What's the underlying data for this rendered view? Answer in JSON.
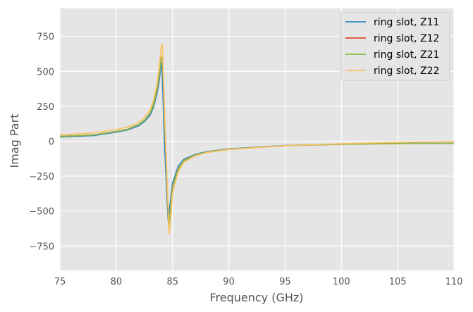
{
  "chart_data": {
    "type": "line",
    "xlabel": "Frequency (GHz)",
    "ylabel": "Imag Part",
    "xlim": [
      75,
      110
    ],
    "ylim": [
      -925,
      950
    ],
    "xticks": [
      75,
      80,
      85,
      90,
      95,
      100,
      105,
      110
    ],
    "yticks": [
      -750,
      -500,
      -250,
      0,
      250,
      500,
      750
    ],
    "grid": true,
    "legend_position": "top-right",
    "colors": {
      "background": "#e5e5e5",
      "grid": "#ffffff"
    },
    "series": [
      {
        "name": "ring slot, Z11",
        "color": "#348abd",
        "x": [
          75,
          78,
          80,
          81,
          82,
          82.5,
          83,
          83.3,
          83.6,
          83.8,
          84.0,
          84.05,
          84.3,
          84.6,
          84.7,
          85.0,
          85.5,
          86,
          87,
          88,
          90,
          95,
          100,
          105,
          110
        ],
        "y": [
          30,
          40,
          65,
          80,
          110,
          140,
          185,
          240,
          330,
          420,
          555,
          560,
          -50,
          -560,
          -500,
          -300,
          -180,
          -130,
          -95,
          -75,
          -55,
          -30,
          -20,
          -15,
          -15
        ]
      },
      {
        "name": "ring slot, Z12",
        "color": "#e24a33",
        "x": [
          75,
          78,
          80,
          81,
          82,
          82.5,
          83,
          83.3,
          83.6,
          83.8,
          84.0,
          84.1,
          84.4,
          84.65,
          84.75,
          85.0,
          85.5,
          86,
          87,
          88,
          90,
          95,
          100,
          105,
          110
        ],
        "y": [
          35,
          45,
          70,
          85,
          120,
          150,
          200,
          260,
          360,
          460,
          600,
          605,
          -60,
          -600,
          -540,
          -330,
          -200,
          -140,
          -100,
          -78,
          -57,
          -32,
          -22,
          -17,
          -15
        ]
      },
      {
        "name": "ring slot, Z21",
        "color": "#8eba42",
        "x": [
          75,
          78,
          80,
          81,
          82,
          82.5,
          83,
          83.3,
          83.6,
          83.8,
          84.0,
          84.1,
          84.4,
          84.65,
          84.75,
          85.0,
          85.5,
          86,
          87,
          88,
          90,
          95,
          100,
          105,
          110
        ],
        "y": [
          35,
          45,
          70,
          85,
          120,
          150,
          200,
          260,
          360,
          460,
          600,
          605,
          -60,
          -600,
          -540,
          -330,
          -200,
          -140,
          -100,
          -78,
          -57,
          -32,
          -22,
          -17,
          -15
        ]
      },
      {
        "name": "ring slot, Z22",
        "color": "#fbc15e",
        "x": [
          75,
          78,
          80,
          81,
          82,
          82.5,
          83,
          83.3,
          83.6,
          83.8,
          84.0,
          84.1,
          84.4,
          84.7,
          84.8,
          85.0,
          85.5,
          86,
          87,
          88,
          90,
          95,
          100,
          105,
          110
        ],
        "y": [
          45,
          60,
          85,
          100,
          135,
          170,
          225,
          290,
          400,
          510,
          680,
          690,
          -60,
          -660,
          -590,
          -370,
          -220,
          -150,
          -105,
          -82,
          -60,
          -32,
          -18,
          -8,
          -2
        ]
      }
    ]
  }
}
